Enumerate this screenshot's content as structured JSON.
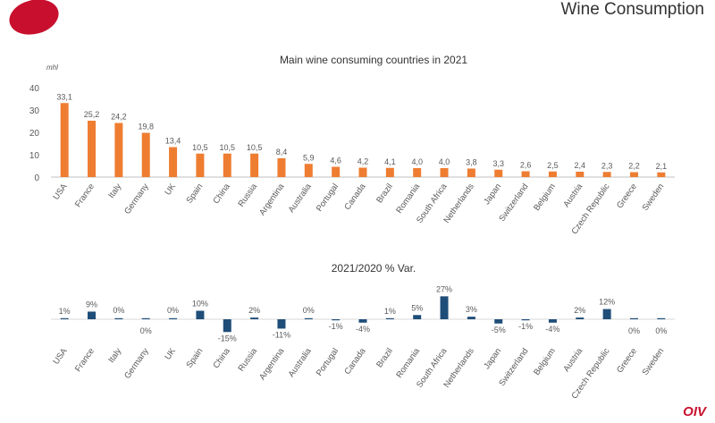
{
  "header": {
    "title": "Wine Consumption",
    "brand": "OIV"
  },
  "colors": {
    "consumption": "#ee7d31",
    "variation": "#1f4e79",
    "logo": "#c8102e"
  },
  "chart_data": [
    {
      "type": "bar",
      "title": "Main wine consuming countries in 2021",
      "ylabel": "mhl",
      "ylim": [
        0,
        40
      ],
      "yticks": [
        0,
        10,
        20,
        30,
        40
      ],
      "categories": [
        "USA",
        "France",
        "Italy",
        "Germany",
        "UK",
        "Spain",
        "China",
        "Russia",
        "Argentina",
        "Australia",
        "Portugal",
        "Canada",
        "Brazil",
        "Romania",
        "South Africa",
        "Netherlands",
        "Japan",
        "Switzerland",
        "Belgium",
        "Austria",
        "Czech Republic",
        "Greece",
        "Sweden"
      ],
      "values": [
        33.1,
        25.2,
        24.2,
        19.8,
        13.4,
        10.5,
        10.5,
        10.5,
        8.4,
        5.9,
        4.6,
        4.2,
        4.1,
        4.0,
        4.0,
        3.8,
        3.3,
        2.6,
        2.5,
        2.4,
        2.3,
        2.2,
        2.1
      ],
      "labels": [
        "33,1",
        "25,2",
        "24,2",
        "19,8",
        "13,4",
        "10,5",
        "10,5",
        "10,5",
        "8,4",
        "5,9",
        "4,6",
        "4,2",
        "4,1",
        "4,0",
        "4,0",
        "3,8",
        "3,3",
        "2,6",
        "2,5",
        "2,4",
        "2,3",
        "2,2",
        "2,1"
      ]
    },
    {
      "type": "bar",
      "title": "2021/2020 % Var.",
      "categories": [
        "USA",
        "France",
        "Italy",
        "Germany",
        "UK",
        "Spain",
        "China",
        "Russia",
        "Argentina",
        "Australia",
        "Portugal",
        "Canada",
        "Brazil",
        "Romania",
        "South Africa",
        "Netherlands",
        "Japan",
        "Switzerland",
        "Belgium",
        "Austria",
        "Czech Republic",
        "Greece",
        "Sweden"
      ],
      "values": [
        1,
        9,
        0,
        0,
        0,
        10,
        -15,
        2,
        -11,
        0,
        -1,
        -4,
        1,
        5,
        27,
        3,
        -5,
        -1,
        -4,
        2,
        12,
        0,
        0
      ],
      "labels": [
        "1%",
        "9%",
        "0%",
        "0%",
        "0%",
        "10%",
        "-15%",
        "2%",
        "-11%",
        "0%",
        "-1%",
        "-4%",
        "1%",
        "5%",
        "27%",
        "3%",
        "-5%",
        "-1%",
        "-4%",
        "2%",
        "12%",
        "0%",
        "0%"
      ]
    }
  ]
}
